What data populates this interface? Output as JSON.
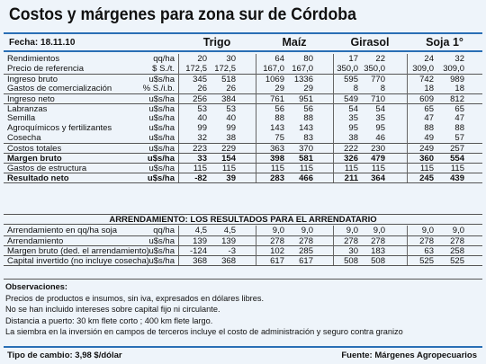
{
  "title": "Costos y márgenes para zona sur de Córdoba",
  "date_label": "Fecha: 18.11.10",
  "crops": [
    "Trigo",
    "Maíz",
    "Girasol",
    "Soja 1°"
  ],
  "rows": [
    {
      "label": "Rendimientos",
      "unit": "qq/ha",
      "values": [
        "20",
        "30",
        "64",
        "80",
        "17",
        "22",
        "24",
        "32"
      ],
      "bold": false
    },
    {
      "label": "Precio de referencia",
      "unit": "$ S./t.",
      "values": [
        "172,5",
        "172,5",
        "167,0",
        "167,0",
        "350,0",
        "350,0",
        "309,0",
        "309,0"
      ],
      "bold": false
    },
    {
      "label": "Ingreso bruto",
      "unit": "u$s/ha",
      "values": [
        "345",
        "518",
        "1069",
        "1336",
        "595",
        "770",
        "742",
        "989"
      ],
      "bold": false
    },
    {
      "label": "Gastos de comercialización",
      "unit": "% S./i.b.",
      "values": [
        "26",
        "26",
        "29",
        "29",
        "8",
        "8",
        "18",
        "18"
      ],
      "bold": false
    },
    {
      "label": "Ingreso neto",
      "unit": "u$s/ha",
      "values": [
        "256",
        "384",
        "761",
        "951",
        "549",
        "710",
        "609",
        "812"
      ],
      "bold": false
    },
    {
      "label": "Labranzas",
      "unit": "u$s/ha",
      "values": [
        "53",
        "53",
        "56",
        "56",
        "54",
        "54",
        "65",
        "65"
      ],
      "bold": false
    },
    {
      "label": "Semilla",
      "unit": "u$s/ha",
      "values": [
        "40",
        "40",
        "88",
        "88",
        "35",
        "35",
        "47",
        "47"
      ],
      "bold": false
    },
    {
      "label": "Agroquímicos y fertilizantes",
      "unit": "u$s/ha",
      "values": [
        "99",
        "99",
        "143",
        "143",
        "95",
        "95",
        "88",
        "88"
      ],
      "bold": false
    },
    {
      "label": "Cosecha",
      "unit": "u$s/ha",
      "values": [
        "32",
        "38",
        "75",
        "83",
        "38",
        "46",
        "49",
        "57"
      ],
      "bold": false
    },
    {
      "label": "Costos totales",
      "unit": "u$s/ha",
      "values": [
        "223",
        "229",
        "363",
        "370",
        "222",
        "230",
        "249",
        "257"
      ],
      "bold": false
    },
    {
      "label": "Margen bruto",
      "unit": "u$s/ha",
      "values": [
        "33",
        "154",
        "398",
        "581",
        "326",
        "479",
        "360",
        "554"
      ],
      "bold": true
    },
    {
      "label": "Gastos de estructura",
      "unit": "u$s/ha",
      "values": [
        "115",
        "115",
        "115",
        "115",
        "115",
        "115",
        "115",
        "115"
      ],
      "bold": false
    },
    {
      "label": "Resultado neto",
      "unit": "u$s/ha",
      "values": [
        "-82",
        "39",
        "283",
        "466",
        "211",
        "364",
        "245",
        "439"
      ],
      "bold": true
    }
  ],
  "arrendamiento_title": "ARRENDAMIENTO: LOS RESULTADOS PARA EL ARRENDATARIO",
  "arr_rows": [
    {
      "label": "Arrendamiento en qq/ha soja",
      "unit": "qq/ha",
      "values": [
        "4,5",
        "4,5",
        "9,0",
        "9,0",
        "9,0",
        "9,0",
        "9,0",
        "9,0"
      ]
    },
    {
      "label": "Arrendamiento",
      "unit": "u$s/ha",
      "values": [
        "139",
        "139",
        "278",
        "278",
        "278",
        "278",
        "278",
        "278"
      ]
    },
    {
      "label": "Margen bruto (ded. el arrendamiento)",
      "unit": "u$s/ha",
      "values": [
        "-124",
        "-3",
        "102",
        "285",
        "30",
        "183",
        "63",
        "258"
      ]
    },
    {
      "label": "Capital invertido (no incluye cosecha)",
      "unit": "u$s/ha",
      "values": [
        "368",
        "368",
        "617",
        "617",
        "508",
        "508",
        "525",
        "525"
      ]
    }
  ],
  "observaciones_title": "Observaciones:",
  "observaciones": [
    "Precios de productos e insumos, sin iva, expresados en dólares libres.",
    "No se han incluido intereses sobre capital fijo ni circulante.",
    "Distancia a puerto: 30 km  flete corto ; 400 km flete largo.",
    "La siembra en la inversión en campos de terceros incluye el costo de administración y seguro contra granizo"
  ],
  "tipo_cambio": "Tipo de cambio: 3,98  $/dólar",
  "fuente": "Fuente: Márgenes Agropecuarios",
  "colors": {
    "background": "#eef4fa",
    "rule": "#2a6fb5"
  }
}
